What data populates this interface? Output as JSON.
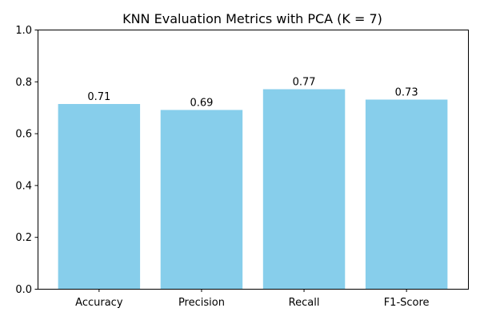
{
  "chart_data": {
    "type": "bar",
    "title": "KNN Evaluation Metrics with PCA (K = 7)",
    "xlabel": "",
    "ylabel": "",
    "categories": [
      "Accuracy",
      "Precision",
      "Recall",
      "F1-Score"
    ],
    "values": [
      0.713,
      0.69,
      0.77,
      0.73
    ],
    "data_labels": [
      "0.71",
      "0.69",
      "0.77",
      "0.73"
    ],
    "ylim": [
      0,
      1.0
    ],
    "yticks": [
      0.0,
      0.2,
      0.4,
      0.6,
      0.8,
      1.0
    ],
    "ytick_labels": [
      "0.0",
      "0.2",
      "0.4",
      "0.6",
      "0.8",
      "1.0"
    ],
    "grid": false,
    "legend": "none",
    "bar_color": "#87CEEB",
    "axis_color": "#000000"
  }
}
